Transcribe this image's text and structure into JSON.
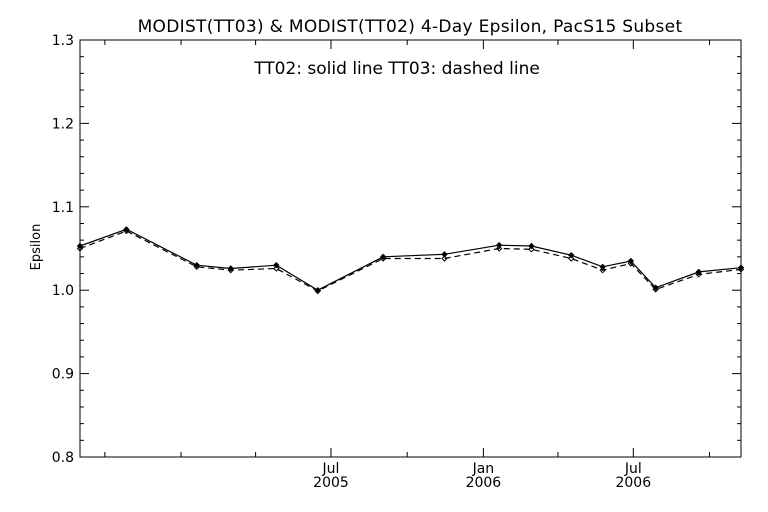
{
  "chart_data": {
    "type": "line",
    "title": "MODIST(TT03) & MODIST(TT02) 4-Day Epsilon, PacS15 Subset",
    "annotation": "TT02: solid line   TT03: dashed line",
    "xlabel": "",
    "ylabel": "Epsilon",
    "ylim": [
      0.8,
      1.3
    ],
    "xlim": [
      "2004-09-01",
      "2006-11-08"
    ],
    "y_ticks": [
      "0.8",
      "0.9",
      "1.0",
      "1.1",
      "1.2",
      "1.3"
    ],
    "x_ticks": [
      {
        "month": "Jul",
        "year": "2005"
      },
      {
        "month": "Jan",
        "year": "2006"
      },
      {
        "month": "Jul",
        "year": "2006"
      }
    ],
    "grid": false,
    "line_color": "#000000",
    "series": [
      {
        "name": "TT02",
        "style": "solid",
        "x": [
          "2004-09-01",
          "2004-10-27",
          "2005-01-20",
          "2005-03-02",
          "2005-04-26",
          "2005-06-15",
          "2005-09-02",
          "2005-11-15",
          "2006-01-20",
          "2006-02-28",
          "2006-04-17",
          "2006-05-25",
          "2006-06-28",
          "2006-07-28",
          "2006-09-18",
          "2006-11-08"
        ],
        "y": [
          1.053,
          1.073,
          1.03,
          1.026,
          1.03,
          1.0,
          1.04,
          1.043,
          1.054,
          1.053,
          1.042,
          1.028,
          1.035,
          1.003,
          1.022,
          1.027
        ]
      },
      {
        "name": "TT03",
        "style": "dashed",
        "x": [
          "2004-09-01",
          "2004-10-27",
          "2005-01-20",
          "2005-03-02",
          "2005-04-26",
          "2005-06-15",
          "2005-09-02",
          "2005-11-15",
          "2006-01-20",
          "2006-02-28",
          "2006-04-17",
          "2006-05-25",
          "2006-06-28",
          "2006-07-28",
          "2006-09-18",
          "2006-11-08"
        ],
        "y": [
          1.05,
          1.071,
          1.028,
          1.024,
          1.026,
          0.999,
          1.038,
          1.038,
          1.05,
          1.049,
          1.038,
          1.024,
          1.032,
          1.001,
          1.019,
          1.025
        ]
      }
    ]
  }
}
